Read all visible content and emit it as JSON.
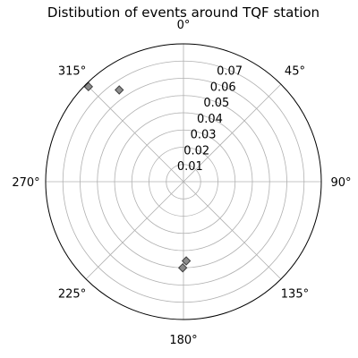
{
  "chart_data": {
    "type": "scatter",
    "projection": "polar",
    "title": "Distibution of events around TQF station",
    "theta_direction": "clockwise",
    "theta_zero_location": "N",
    "theta_ticks": [
      {
        "deg": 0,
        "label": "0°"
      },
      {
        "deg": 45,
        "label": "45°"
      },
      {
        "deg": 90,
        "label": "90°"
      },
      {
        "deg": 135,
        "label": "135°"
      },
      {
        "deg": 180,
        "label": "180°"
      },
      {
        "deg": 225,
        "label": "225°"
      },
      {
        "deg": 270,
        "label": "270°"
      },
      {
        "deg": 315,
        "label": "315°"
      }
    ],
    "r_ticks": [
      {
        "value": 0.01,
        "label": "0.01"
      },
      {
        "value": 0.02,
        "label": "0.02"
      },
      {
        "value": 0.03,
        "label": "0.03"
      },
      {
        "value": 0.04,
        "label": "0.04"
      },
      {
        "value": 0.05,
        "label": "0.05"
      },
      {
        "value": 0.06,
        "label": "0.06"
      },
      {
        "value": 0.07,
        "label": "0.07"
      }
    ],
    "r_range": [
      0,
      0.08
    ],
    "grid": true,
    "marker": "diamond",
    "marker_color": "#808080",
    "points": [
      {
        "theta": 315,
        "r": 0.078
      },
      {
        "theta": 325,
        "r": 0.065
      },
      {
        "theta": 178,
        "r": 0.046
      },
      {
        "theta": 180.5,
        "r": 0.05
      }
    ]
  }
}
